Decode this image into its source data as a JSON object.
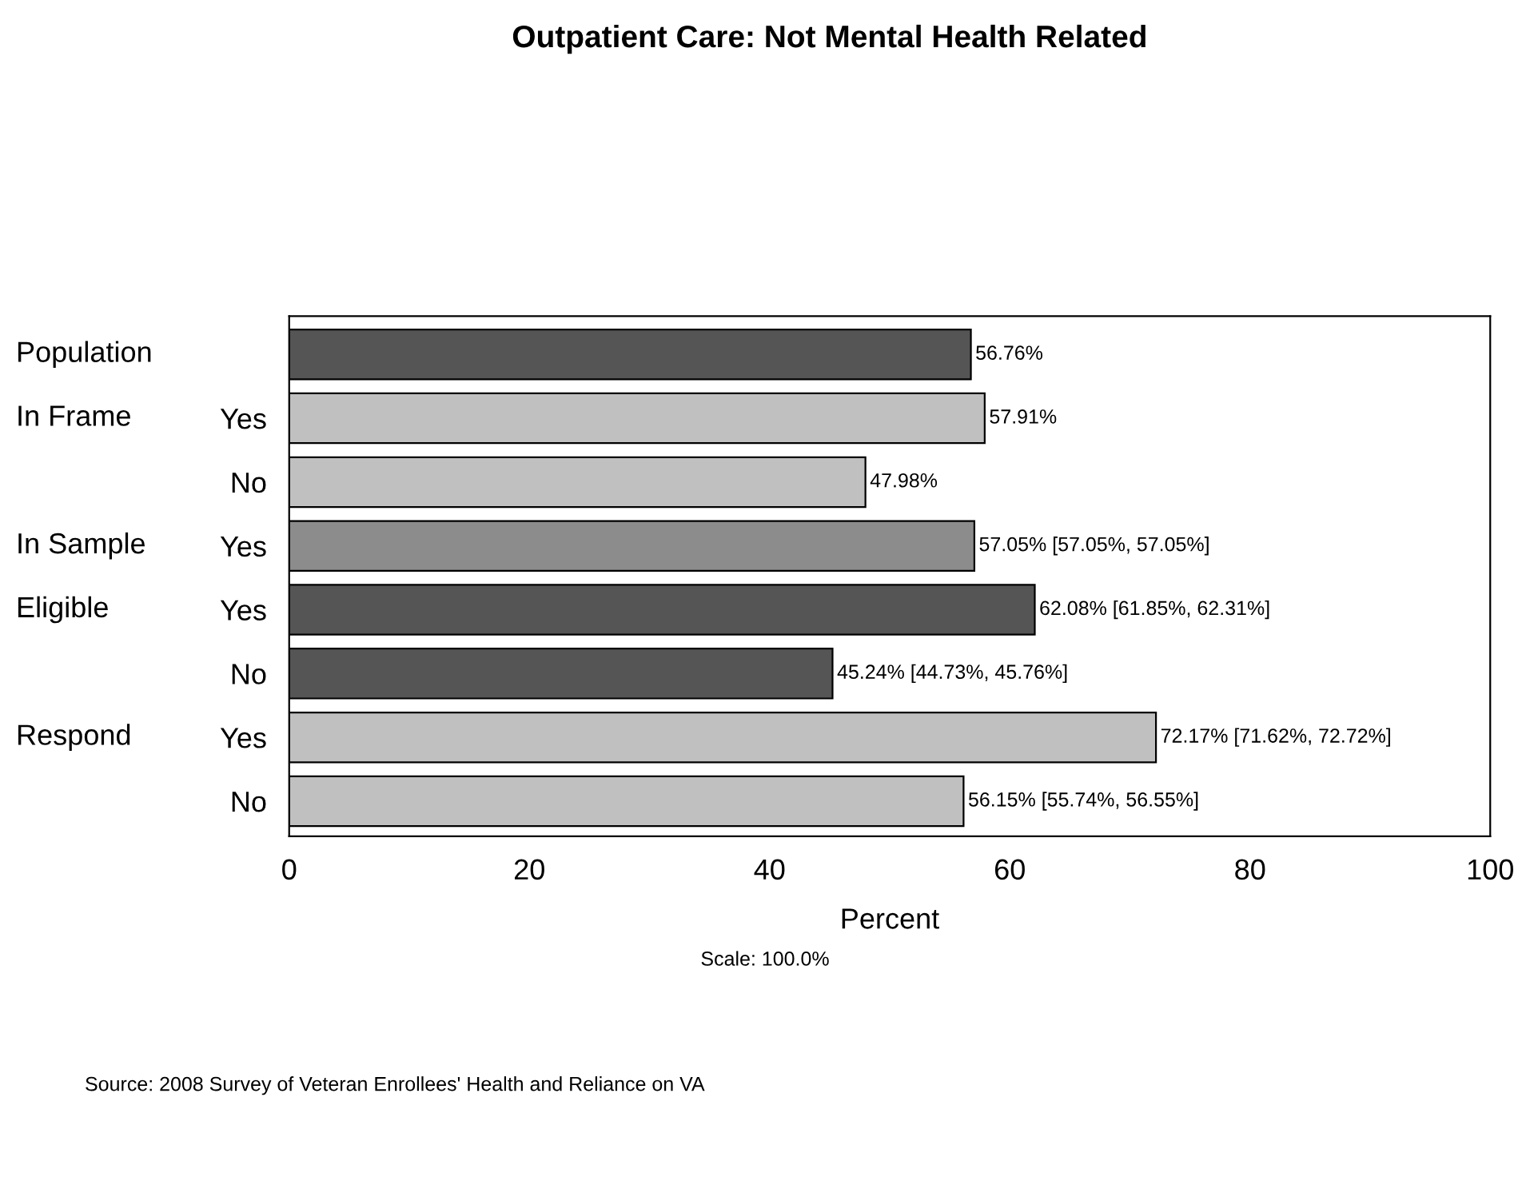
{
  "chart_data": {
    "type": "bar",
    "orientation": "horizontal",
    "title": "Outpatient Care: Not Mental Health Related",
    "xlabel": "Percent",
    "categories": [
      null,
      "Yes",
      "No",
      "Yes",
      "Yes",
      "No",
      "Yes",
      "No"
    ],
    "values": [
      56.76,
      57.91,
      47.98,
      57.05,
      62.08,
      45.24,
      72.17,
      56.15
    ],
    "colors": [
      "#555555",
      "#c0c0c0",
      "#c0c0c0",
      "#8c8c8c",
      "#555555",
      "#555555",
      "#c0c0c0",
      "#c0c0c0"
    ],
    "value_labels": [
      "56.76%",
      "57.91%",
      "47.98%",
      "57.05% [57.05%, 57.05%]",
      "62.08% [61.85%, 62.31%]",
      "45.24% [44.73%, 45.76%]",
      "72.17% [71.62%, 72.72%]",
      "56.15% [55.74%, 56.55%]"
    ],
    "xlim": [
      0,
      100
    ],
    "xticks": [
      0,
      20,
      40,
      60,
      80,
      100
    ],
    "grid": false,
    "annotations": [
      "Population",
      "In Frame",
      "In Sample",
      "Eligible",
      "Respond",
      "Scale: 100.0%",
      "Source: 2008 Survey of Veteran Enrollees' Health and Reliance on VA"
    ]
  }
}
